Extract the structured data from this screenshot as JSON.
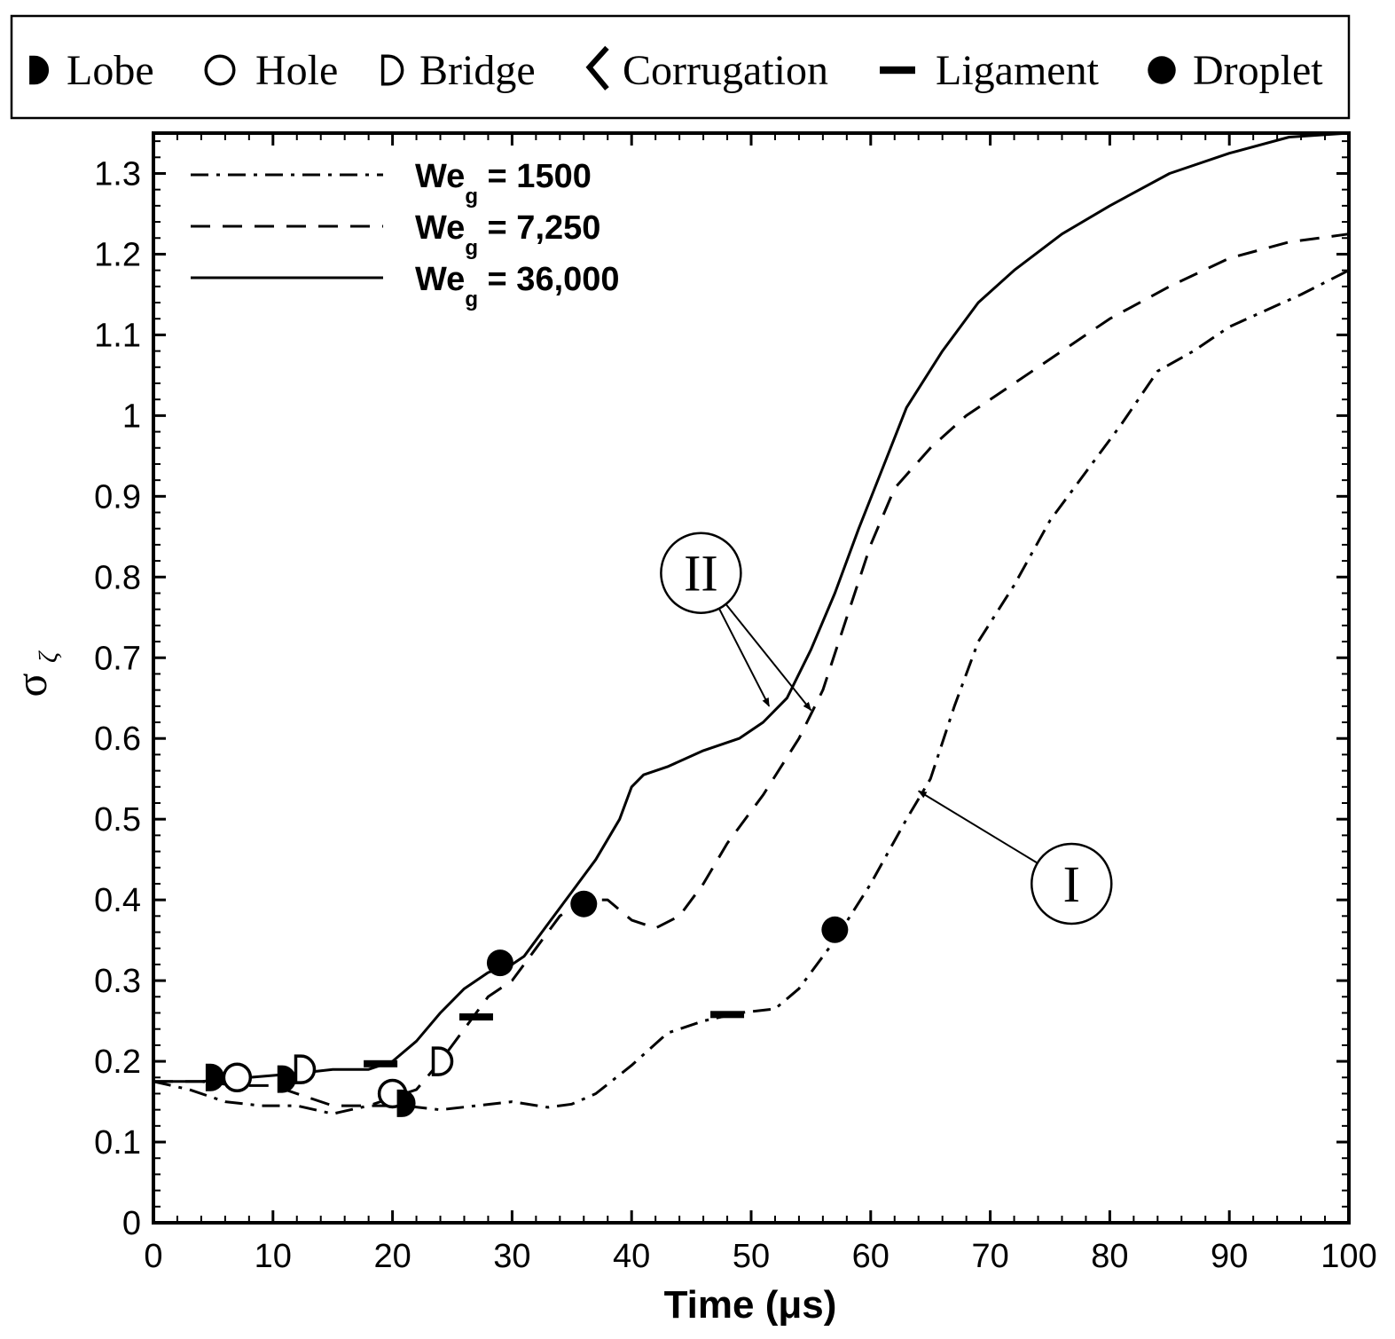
{
  "chart_data": {
    "type": "line",
    "title": "",
    "xlabel": "Time (μs)",
    "ylabel_main": "σ",
    "ylabel_sub": "ζ",
    "xlim": [
      0,
      100
    ],
    "ylim": [
      0,
      1.35
    ],
    "x_ticks": [
      0,
      10,
      20,
      30,
      40,
      50,
      60,
      70,
      80,
      90,
      100
    ],
    "x_tick_labels": [
      "0",
      "10",
      "20",
      "30",
      "40",
      "50",
      "60",
      "70",
      "80",
      "90",
      "100"
    ],
    "y_ticks": [
      0,
      0.1,
      0.2,
      0.3,
      0.4,
      0.5,
      0.6,
      0.7,
      0.8,
      0.9,
      1.0,
      1.1,
      1.2,
      1.3
    ],
    "y_tick_labels": [
      "0",
      "0.1",
      "0.2",
      "0.3",
      "0.4",
      "0.5",
      "0.6",
      "0.7",
      "0.8",
      "0.9",
      "1",
      "1.1",
      "1.2",
      "1.3"
    ],
    "grid": false,
    "series": [
      {
        "name": "We_g = 1500",
        "legend_main": "We",
        "legend_sub": "g",
        "legend_value": " = 1500",
        "style": "dashdot",
        "points": [
          [
            0,
            0.175
          ],
          [
            3,
            0.165
          ],
          [
            6,
            0.15
          ],
          [
            9,
            0.145
          ],
          [
            12,
            0.145
          ],
          [
            15,
            0.135
          ],
          [
            18,
            0.145
          ],
          [
            21,
            0.145
          ],
          [
            24,
            0.14
          ],
          [
            27,
            0.145
          ],
          [
            30,
            0.15
          ],
          [
            33,
            0.143
          ],
          [
            35,
            0.147
          ],
          [
            37,
            0.16
          ],
          [
            40,
            0.195
          ],
          [
            43,
            0.235
          ],
          [
            46,
            0.25
          ],
          [
            49,
            0.26
          ],
          [
            52,
            0.265
          ],
          [
            54,
            0.29
          ],
          [
            57,
            0.35
          ],
          [
            60,
            0.42
          ],
          [
            63,
            0.5
          ],
          [
            65,
            0.55
          ],
          [
            67,
            0.64
          ],
          [
            69,
            0.72
          ],
          [
            72,
            0.79
          ],
          [
            75,
            0.87
          ],
          [
            78,
            0.93
          ],
          [
            81,
            0.99
          ],
          [
            84,
            1.055
          ],
          [
            87,
            1.08
          ],
          [
            90,
            1.11
          ],
          [
            93,
            1.13
          ],
          [
            96,
            1.15
          ],
          [
            100,
            1.18
          ]
        ]
      },
      {
        "name": "We_g = 7,250",
        "legend_main": "We",
        "legend_sub": "g",
        "legend_value": " = 7,250",
        "style": "dashed",
        "points": [
          [
            0,
            0.175
          ],
          [
            4,
            0.175
          ],
          [
            7,
            0.17
          ],
          [
            10,
            0.17
          ],
          [
            13,
            0.155
          ],
          [
            15,
            0.145
          ],
          [
            18,
            0.145
          ],
          [
            20,
            0.155
          ],
          [
            22,
            0.165
          ],
          [
            24,
            0.2
          ],
          [
            26,
            0.24
          ],
          [
            28,
            0.28
          ],
          [
            30,
            0.3
          ],
          [
            32,
            0.34
          ],
          [
            34,
            0.38
          ],
          [
            36,
            0.4
          ],
          [
            38,
            0.4
          ],
          [
            40,
            0.375
          ],
          [
            42,
            0.365
          ],
          [
            44,
            0.38
          ],
          [
            46,
            0.42
          ],
          [
            48,
            0.47
          ],
          [
            51,
            0.53
          ],
          [
            54,
            0.6
          ],
          [
            56,
            0.66
          ],
          [
            58,
            0.75
          ],
          [
            60,
            0.84
          ],
          [
            62,
            0.91
          ],
          [
            65,
            0.96
          ],
          [
            68,
            1.0
          ],
          [
            72,
            1.04
          ],
          [
            76,
            1.08
          ],
          [
            80,
            1.12
          ],
          [
            85,
            1.16
          ],
          [
            90,
            1.195
          ],
          [
            95,
            1.215
          ],
          [
            100,
            1.225
          ]
        ]
      },
      {
        "name": "We_g = 36,000",
        "legend_main": "We",
        "legend_sub": "g",
        "legend_value": " = 36,000",
        "style": "solid",
        "points": [
          [
            0,
            0.175
          ],
          [
            4,
            0.175
          ],
          [
            8,
            0.18
          ],
          [
            12,
            0.185
          ],
          [
            15,
            0.19
          ],
          [
            18,
            0.19
          ],
          [
            20,
            0.2
          ],
          [
            22,
            0.225
          ],
          [
            24,
            0.26
          ],
          [
            26,
            0.29
          ],
          [
            28,
            0.31
          ],
          [
            30,
            0.32
          ],
          [
            31,
            0.33
          ],
          [
            33,
            0.37
          ],
          [
            35,
            0.41
          ],
          [
            37,
            0.45
          ],
          [
            39,
            0.5
          ],
          [
            40,
            0.54
          ],
          [
            41,
            0.555
          ],
          [
            43,
            0.565
          ],
          [
            46,
            0.585
          ],
          [
            49,
            0.6
          ],
          [
            51,
            0.62
          ],
          [
            53,
            0.65
          ],
          [
            55,
            0.71
          ],
          [
            57,
            0.78
          ],
          [
            59,
            0.86
          ],
          [
            61,
            0.935
          ],
          [
            63,
            1.01
          ],
          [
            66,
            1.08
          ],
          [
            69,
            1.14
          ],
          [
            72,
            1.18
          ],
          [
            76,
            1.225
          ],
          [
            80,
            1.26
          ],
          [
            85,
            1.3
          ],
          [
            90,
            1.325
          ],
          [
            95,
            1.345
          ],
          [
            100,
            1.35
          ]
        ]
      }
    ],
    "morphology_legend": [
      {
        "key": "lobe",
        "label": "Lobe"
      },
      {
        "key": "hole",
        "label": "Hole"
      },
      {
        "key": "bridge",
        "label": "Bridge"
      },
      {
        "key": "corrugation",
        "label": "Corrugation"
      },
      {
        "key": "ligament",
        "label": "Ligament"
      },
      {
        "key": "droplet",
        "label": "Droplet"
      }
    ],
    "markers": [
      {
        "type": "lobe",
        "x": 5,
        "y": 0.18
      },
      {
        "type": "hole",
        "x": 7,
        "y": 0.18
      },
      {
        "type": "lobe",
        "x": 11,
        "y": 0.178
      },
      {
        "type": "bridge",
        "x": 12.5,
        "y": 0.19
      },
      {
        "type": "ligament",
        "x": 19,
        "y": 0.197
      },
      {
        "type": "hole",
        "x": 20,
        "y": 0.16
      },
      {
        "type": "lobe",
        "x": 21,
        "y": 0.148
      },
      {
        "type": "bridge",
        "x": 24,
        "y": 0.2
      },
      {
        "type": "ligament",
        "x": 27,
        "y": 0.255
      },
      {
        "type": "droplet",
        "x": 29,
        "y": 0.322
      },
      {
        "type": "droplet",
        "x": 36,
        "y": 0.395
      },
      {
        "type": "ligament",
        "x": 48,
        "y": 0.258
      },
      {
        "type": "droplet",
        "x": 57,
        "y": 0.363
      }
    ],
    "annotations": [
      {
        "label": "II",
        "circle_x": 45.8,
        "circle_y": 0.805,
        "targets": [
          [
            51.5,
            0.64
          ],
          [
            55,
            0.635
          ]
        ]
      },
      {
        "label": "I",
        "circle_x": 76.8,
        "circle_y": 0.42,
        "targets": [
          [
            64,
            0.535
          ]
        ]
      }
    ]
  }
}
